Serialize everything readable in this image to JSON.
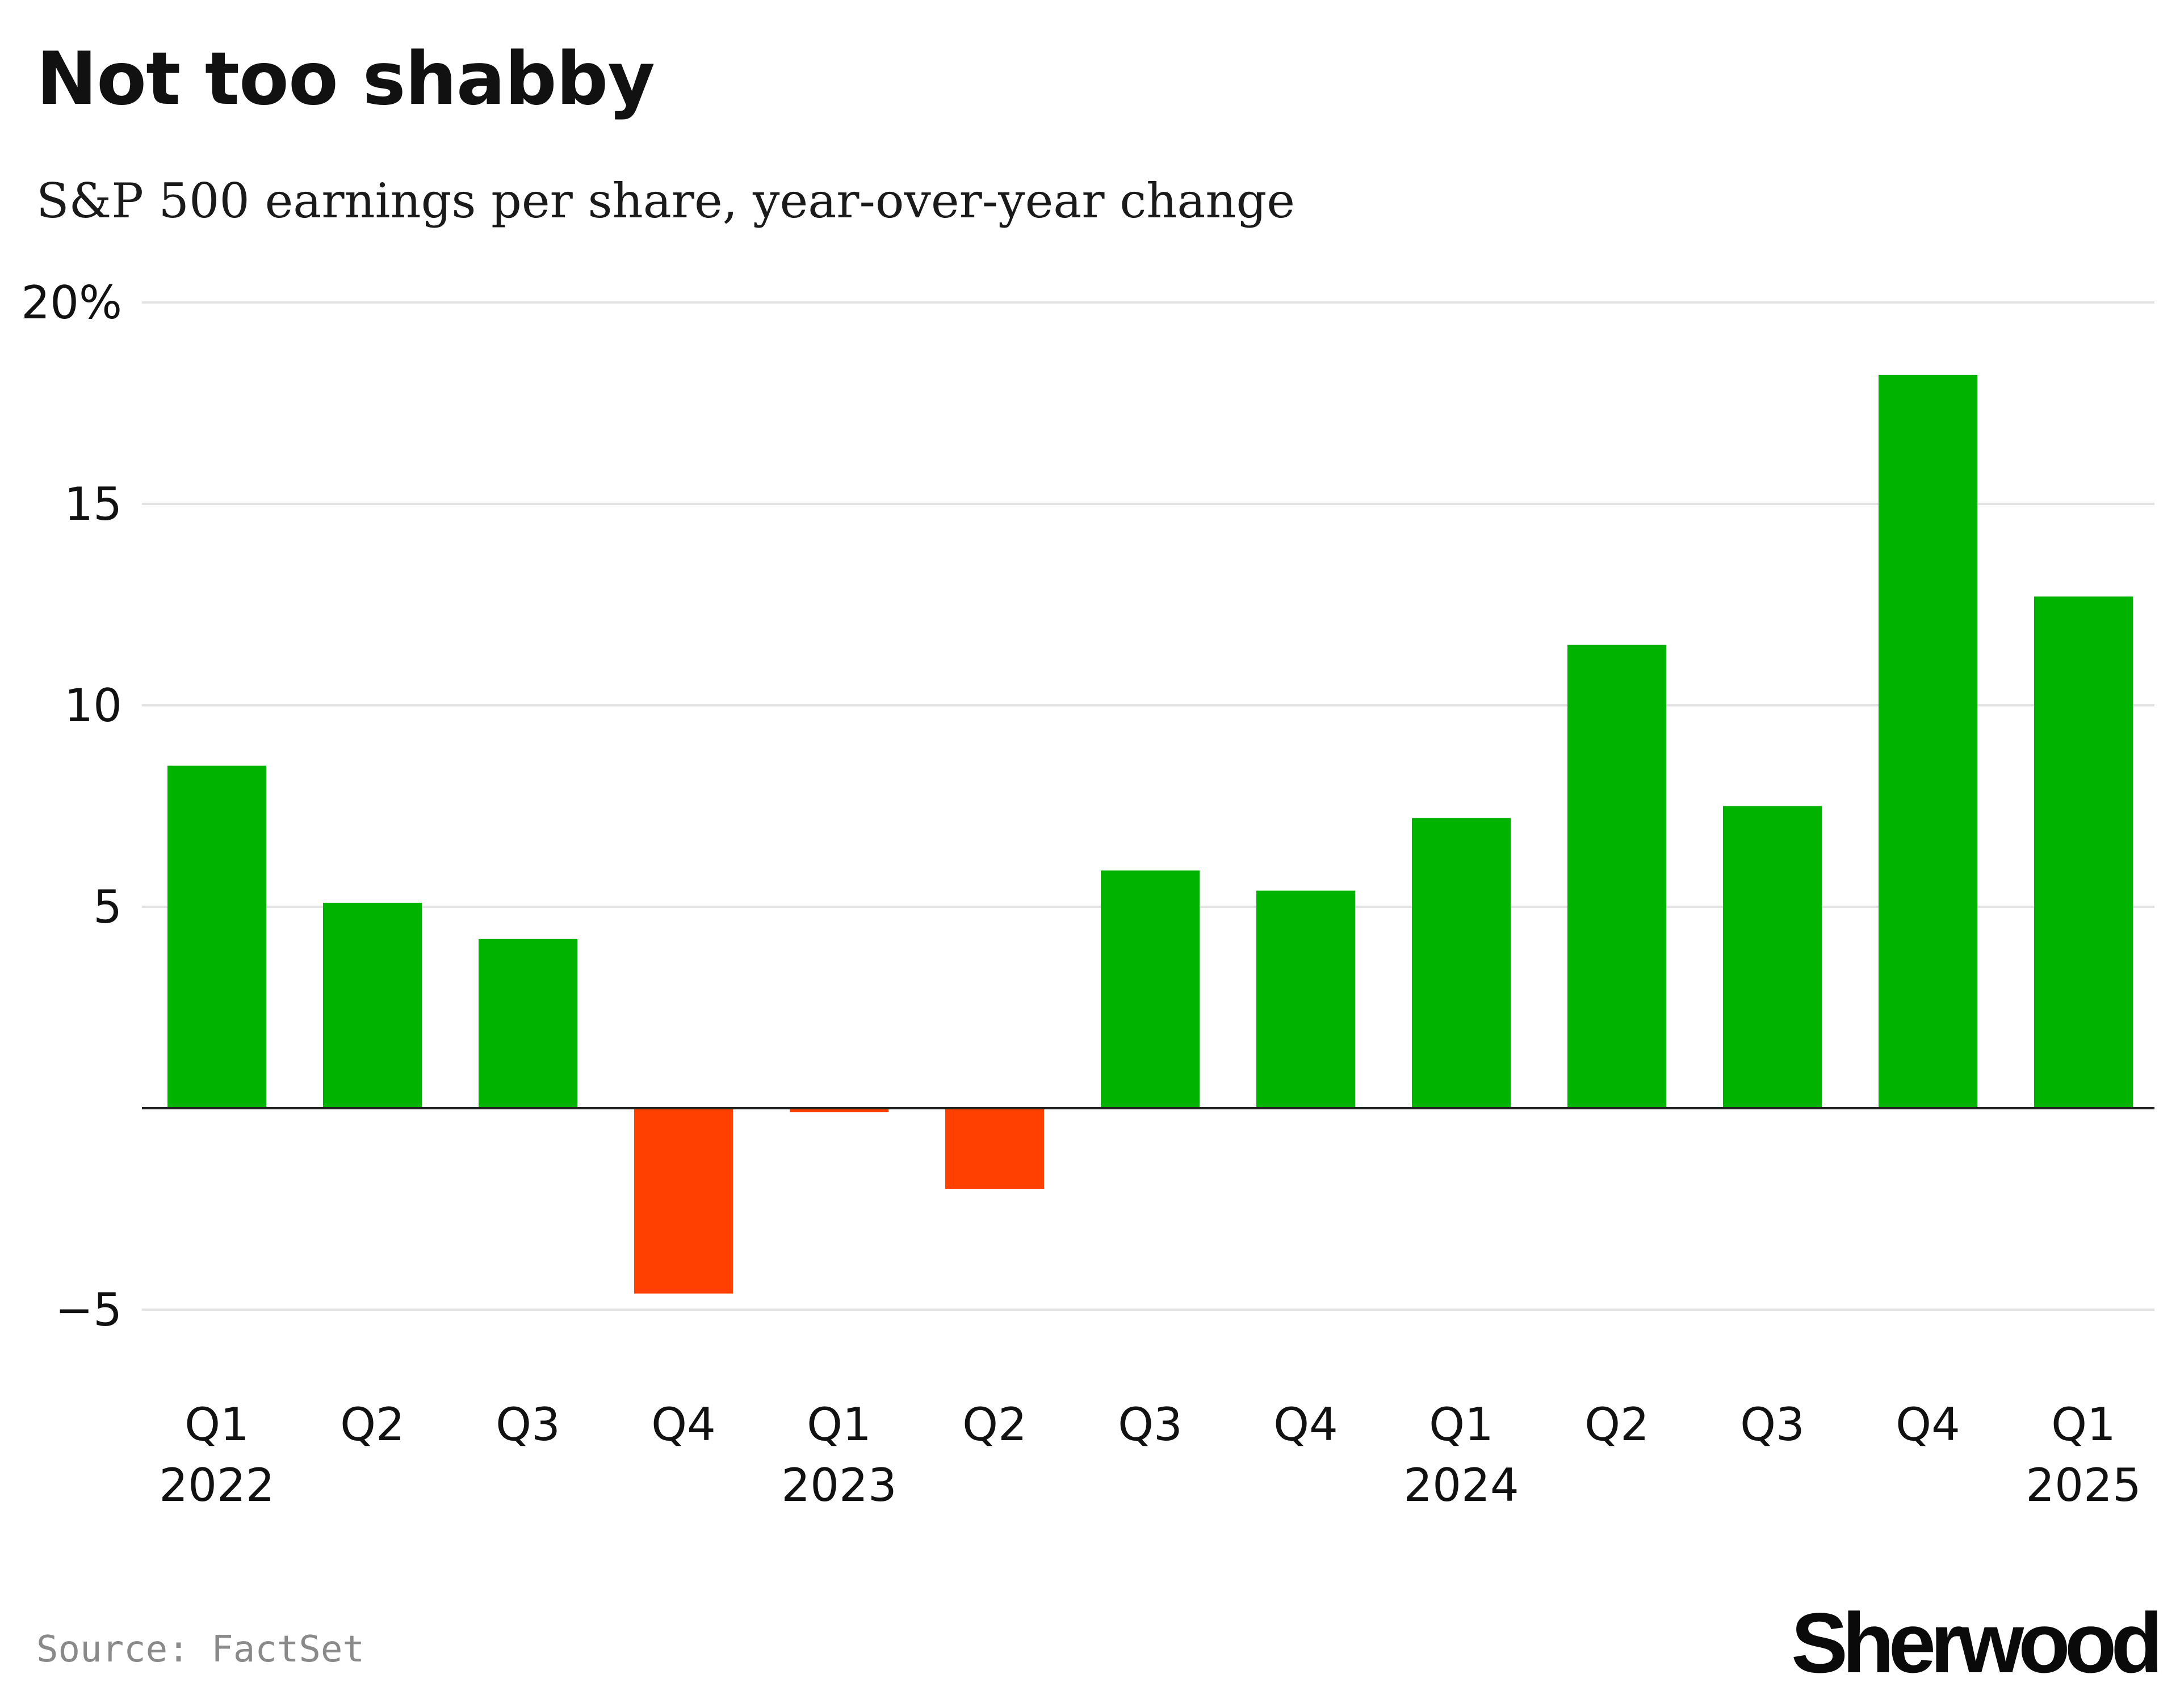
{
  "header": {
    "title": "Not too shabby",
    "subtitle": "S&P 500 earnings per share, year-over-year change"
  },
  "footer": {
    "source": "Source: FactSet",
    "logo_text": "Sherwood"
  },
  "colors": {
    "positive": "#00b300",
    "negative": "#ff4000",
    "grid": "#e3e3e3",
    "zero_line": "#222222",
    "text": "#111111"
  },
  "chart_data": {
    "type": "bar",
    "title": "Not too shabby",
    "subtitle": "S&P 500 earnings per share, year-over-year change",
    "xlabel": "",
    "ylabel": "",
    "ylim": [
      -7.5,
      20
    ],
    "yticks": [
      {
        "value": 20,
        "label": "20%"
      },
      {
        "value": 15,
        "label": "15"
      },
      {
        "value": 10,
        "label": "10"
      },
      {
        "value": 5,
        "label": "5"
      },
      {
        "value": -5,
        "label": "−5"
      }
    ],
    "grid": true,
    "categories": [
      "Q1",
      "Q2",
      "Q3",
      "Q4",
      "Q1",
      "Q2",
      "Q3",
      "Q4",
      "Q1",
      "Q2",
      "Q3",
      "Q4",
      "Q1"
    ],
    "year_labels": [
      "2022",
      "",
      "",
      "",
      "2023",
      "",
      "",
      "",
      "2024",
      "",
      "",
      "",
      "2025"
    ],
    "values": [
      8.5,
      5.1,
      4.2,
      -4.6,
      -0.1,
      -2.0,
      5.9,
      5.4,
      7.2,
      11.5,
      7.5,
      18.2,
      12.7
    ],
    "annotations": []
  }
}
